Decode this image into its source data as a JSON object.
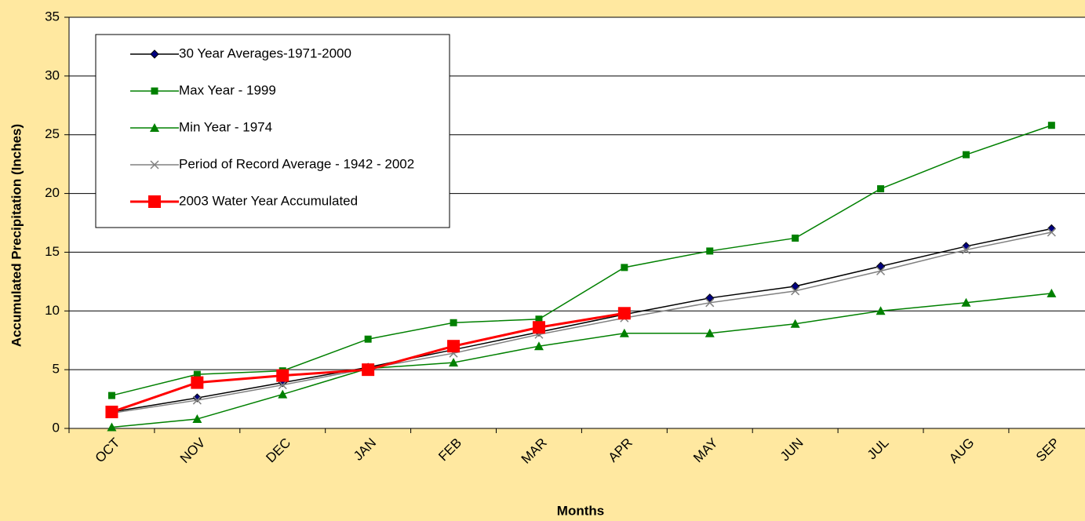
{
  "chart_data": {
    "type": "line",
    "xlabel": "Months",
    "ylabel": "Accumulated Precipitation (Inches)",
    "categories": [
      "OCT",
      "NOV",
      "DEC",
      "JAN",
      "FEB",
      "MAR",
      "APR",
      "MAY",
      "JUN",
      "JUL",
      "AUG",
      "SEP"
    ],
    "ylim": [
      0,
      35
    ],
    "yticks": [
      0,
      5,
      10,
      15,
      20,
      25,
      30,
      35
    ],
    "grid": true,
    "series": [
      {
        "name": "30 Year Averages-1971-2000",
        "color": "#000000",
        "marker": "diamond",
        "marker_color": "#000080",
        "values": [
          1.4,
          2.6,
          3.9,
          5.2,
          6.7,
          8.2,
          9.7,
          11.1,
          12.1,
          13.8,
          15.5,
          17.0
        ]
      },
      {
        "name": "Max Year - 1999",
        "color": "#008000",
        "marker": "square",
        "marker_color": "#008000",
        "values": [
          2.8,
          4.6,
          4.9,
          7.6,
          9.0,
          9.3,
          13.7,
          15.1,
          16.2,
          20.4,
          23.3,
          25.8
        ]
      },
      {
        "name": "Min Year - 1974",
        "color": "#008000",
        "marker": "triangle",
        "marker_color": "#008000",
        "values": [
          0.1,
          0.8,
          2.9,
          5.1,
          5.6,
          7.0,
          8.1,
          8.1,
          8.9,
          10.0,
          10.7,
          11.5
        ]
      },
      {
        "name": "Period of Record Average - 1942 - 2002",
        "color": "#808080",
        "marker": "x",
        "marker_color": "#808080",
        "values": [
          1.3,
          2.4,
          3.7,
          5.1,
          6.4,
          8.0,
          9.4,
          10.7,
          11.7,
          13.4,
          15.2,
          16.7
        ]
      },
      {
        "name": "2003 Water Year Accumulated",
        "color": "#FF0000",
        "marker": "bigsquare",
        "marker_color": "#FF0000",
        "values": [
          1.4,
          3.9,
          4.5,
          5.0,
          7.0,
          8.6,
          9.8,
          null,
          null,
          null,
          null,
          null
        ]
      }
    ]
  }
}
